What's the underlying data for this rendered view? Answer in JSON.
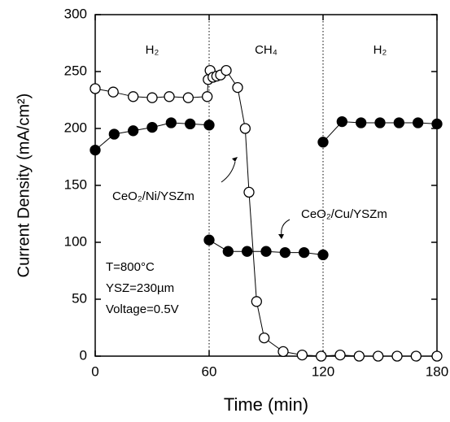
{
  "chart_data": {
    "type": "line",
    "x_label": "Time (min)",
    "y_label": "Current Density (mA/cm²)",
    "xlim": [
      0,
      180
    ],
    "xticks": [
      0,
      60,
      120,
      180
    ],
    "ylim": [
      0,
      300
    ],
    "yticks": [
      0,
      50,
      100,
      150,
      200,
      250,
      300
    ],
    "phase_boundaries": [
      60,
      120
    ],
    "phase_labels": [
      "H₂",
      "CH₄",
      "H₂"
    ],
    "conditions": [
      "T=800°C",
      "YSZ=230µm",
      "Voltage=0.5V"
    ],
    "series": [
      {
        "name": "CeO₂/Ni/YSZm",
        "color": "#000000",
        "marker": "open",
        "x": [
          0,
          9.5,
          20,
          30,
          39,
          49,
          59,
          59.5,
          60.5,
          62,
          64,
          66,
          69,
          75,
          79,
          81,
          85,
          89,
          99,
          109,
          119,
          129,
          139,
          149,
          159,
          169,
          180
        ],
        "values": [
          235,
          232,
          228,
          227,
          228,
          227,
          228,
          243,
          251,
          245,
          246,
          247,
          251,
          236,
          200,
          144,
          48,
          16,
          4,
          1,
          0,
          1,
          0,
          0,
          0,
          0,
          0
        ]
      },
      {
        "name": "CeO₂/Cu/YSZm",
        "color": "#000000",
        "marker": "filled",
        "x": [
          0,
          10,
          20,
          30,
          40,
          50,
          60,
          60,
          60,
          70,
          80,
          90,
          100,
          110,
          120,
          120,
          120,
          130,
          140,
          150,
          160,
          170,
          180
        ],
        "values": [
          181,
          195,
          198,
          201,
          205,
          204,
          203,
          null,
          102,
          92,
          92,
          92,
          91,
          91,
          89,
          null,
          188,
          206,
          205,
          205,
          205,
          205,
          204
        ]
      }
    ]
  }
}
